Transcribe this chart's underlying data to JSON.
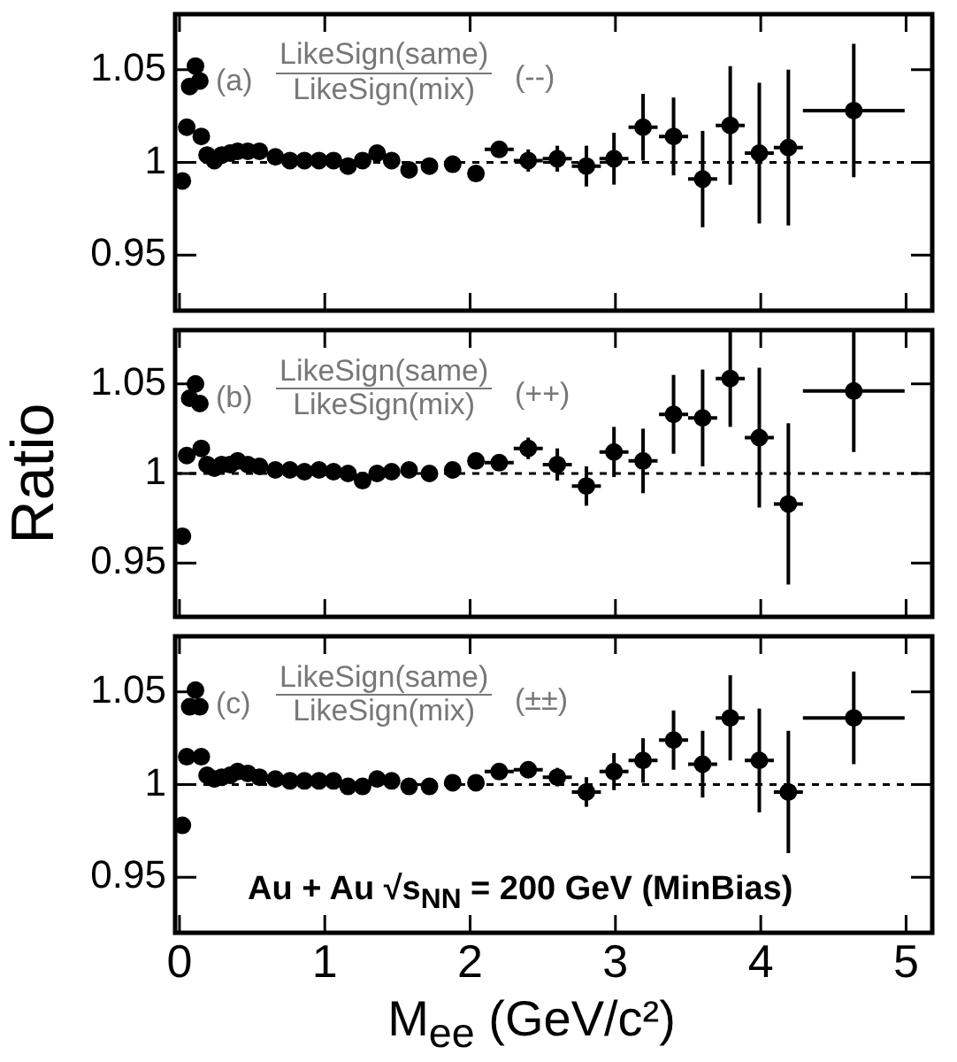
{
  "chart_data": [
    {
      "type": "scatter",
      "annotations": [
        "(a)",
        "LikeSign(same)",
        "LikeSign(mix)",
        "(--)"
      ],
      "xlim": [
        -0.03,
        5.18
      ],
      "xticks": [
        0,
        1,
        2,
        3,
        4,
        5
      ],
      "ylim": [
        0.92,
        1.08
      ],
      "yticks": [
        0.95,
        1,
        1.05
      ],
      "tick_labels": "y",
      "grid": false,
      "legend": false,
      "marker": "circle",
      "ref_lines": [
        {
          "axis": "y",
          "value": 1,
          "line_style": "dashed"
        }
      ],
      "series": [
        {
          "color": "#000000",
          "x": [
            0.02,
            0.05,
            0.07,
            0.11,
            0.14,
            0.15,
            0.19,
            0.24,
            0.29,
            0.35,
            0.4,
            0.47,
            0.55,
            0.66,
            0.76,
            0.86,
            0.96,
            1.06,
            1.16,
            1.26,
            1.36,
            1.46,
            1.58,
            1.72,
            1.88,
            2.04,
            2.2,
            2.4,
            2.6,
            2.8,
            2.99,
            3.19,
            3.4,
            3.6,
            3.79,
            3.99,
            4.19,
            4.64
          ],
          "values": [
            0.99,
            1.019,
            1.041,
            1.052,
            1.044,
            1.014,
            1.004,
            1.001,
            1.004,
            1.005,
            1.006,
            1.006,
            1.006,
            1.003,
            1.001,
            1.001,
            1.001,
            1.001,
            0.998,
            1.001,
            1.005,
            1.001,
            0.996,
            0.998,
            0.999,
            0.994,
            1.007,
            1.001,
            1.002,
            0.998,
            1.002,
            1.019,
            1.014,
            0.991,
            1.02,
            1.005,
            1.008,
            1.028
          ],
          "errors": [
            0.003,
            null,
            null,
            null,
            null,
            null,
            null,
            null,
            null,
            null,
            null,
            null,
            null,
            null,
            null,
            null,
            null,
            null,
            null,
            null,
            null,
            null,
            null,
            null,
            null,
            0.003,
            0.004,
            0.006,
            0.007,
            0.011,
            0.014,
            0.018,
            0.021,
            0.026,
            0.032,
            0.038,
            0.042,
            0.036
          ],
          "xerrors": [
            null,
            null,
            null,
            null,
            null,
            null,
            null,
            null,
            null,
            null,
            null,
            null,
            null,
            null,
            null,
            null,
            null,
            null,
            null,
            null,
            null,
            null,
            0.05,
            0.05,
            0.05,
            0.05,
            0.1,
            0.1,
            0.1,
            0.1,
            0.1,
            0.1,
            0.1,
            0.1,
            0.1,
            0.1,
            0.1,
            0.35
          ]
        }
      ]
    },
    {
      "type": "scatter",
      "ylabel": "Ratio",
      "annotations": [
        "(b)",
        "LikeSign(same)",
        "LikeSign(mix)",
        "(++)"
      ],
      "xlim": [
        -0.03,
        5.18
      ],
      "xticks": [
        0,
        1,
        2,
        3,
        4,
        5
      ],
      "ylim": [
        0.92,
        1.08
      ],
      "yticks": [
        0.95,
        1,
        1.05
      ],
      "tick_labels": "y",
      "grid": false,
      "legend": false,
      "marker": "circle",
      "ref_lines": [
        {
          "axis": "y",
          "value": 1,
          "line_style": "dashed"
        }
      ],
      "series": [
        {
          "color": "#000000",
          "x": [
            0.02,
            0.05,
            0.07,
            0.11,
            0.14,
            0.15,
            0.19,
            0.24,
            0.29,
            0.35,
            0.4,
            0.47,
            0.55,
            0.66,
            0.76,
            0.86,
            0.96,
            1.06,
            1.16,
            1.26,
            1.36,
            1.46,
            1.58,
            1.72,
            1.88,
            2.04,
            2.2,
            2.4,
            2.6,
            2.8,
            2.99,
            3.19,
            3.4,
            3.6,
            3.79,
            3.99,
            4.19,
            4.64
          ],
          "values": [
            0.965,
            1.01,
            1.042,
            1.05,
            1.039,
            1.014,
            1.005,
            1.003,
            1.005,
            1.005,
            1.007,
            1.005,
            1.004,
            1.002,
            1.002,
            1.001,
            1.002,
            1.001,
            1.0,
            0.996,
            1.0,
            1.001,
            1.002,
            1.0,
            1.002,
            1.007,
            1.006,
            1.014,
            1.005,
            0.993,
            1.012,
            1.007,
            1.033,
            1.031,
            1.053,
            1.02,
            0.983,
            1.046
          ],
          "errors": [
            0.004,
            null,
            null,
            null,
            null,
            null,
            null,
            null,
            null,
            null,
            null,
            null,
            null,
            null,
            null,
            null,
            null,
            null,
            null,
            null,
            null,
            null,
            null,
            null,
            null,
            0.003,
            0.004,
            0.006,
            0.009,
            0.011,
            0.014,
            0.018,
            0.022,
            0.027,
            0.027,
            0.039,
            0.045,
            0.034
          ],
          "xerrors": [
            null,
            null,
            null,
            null,
            null,
            null,
            null,
            null,
            null,
            null,
            null,
            null,
            null,
            null,
            null,
            null,
            null,
            null,
            null,
            null,
            null,
            null,
            0.05,
            0.05,
            0.05,
            0.05,
            0.1,
            0.1,
            0.1,
            0.1,
            0.1,
            0.1,
            0.1,
            0.1,
            0.1,
            0.1,
            0.1,
            0.35
          ]
        }
      ]
    },
    {
      "type": "scatter",
      "xlabel": "M$_{ee}$ (GeV/c²)",
      "annotations": [
        "(c)",
        "LikeSign(same)",
        "LikeSign(mix)",
        "(±±)",
        "Au + Au √s$_{NN}$ = 200 GeV (MinBias)"
      ],
      "xlim": [
        -0.03,
        5.18
      ],
      "xticks": [
        0,
        1,
        2,
        3,
        4,
        5
      ],
      "ylim": [
        0.92,
        1.08
      ],
      "yticks": [
        0.95,
        1,
        1.05
      ],
      "grid": false,
      "legend": false,
      "marker": "circle",
      "ref_lines": [
        {
          "axis": "y",
          "value": 1,
          "line_style": "dashed"
        }
      ],
      "series": [
        {
          "color": "#000000",
          "x": [
            0.02,
            0.05,
            0.07,
            0.11,
            0.14,
            0.15,
            0.19,
            0.24,
            0.29,
            0.35,
            0.4,
            0.47,
            0.55,
            0.66,
            0.76,
            0.86,
            0.96,
            1.06,
            1.16,
            1.26,
            1.36,
            1.46,
            1.58,
            1.72,
            1.88,
            2.04,
            2.2,
            2.4,
            2.6,
            2.8,
            2.99,
            3.19,
            3.4,
            3.6,
            3.79,
            3.99,
            4.19,
            4.64
          ],
          "values": [
            0.978,
            1.015,
            1.042,
            1.051,
            1.042,
            1.015,
            1.005,
            1.003,
            1.004,
            1.005,
            1.007,
            1.006,
            1.004,
            1.003,
            1.002,
            1.002,
            1.002,
            1.002,
            0.999,
            0.999,
            1.003,
            1.002,
            0.999,
            0.999,
            1.001,
            1.001,
            1.007,
            1.008,
            1.004,
            0.996,
            1.007,
            1.013,
            1.024,
            1.011,
            1.036,
            1.013,
            0.996,
            1.036
          ],
          "errors": [
            0.003,
            null,
            null,
            null,
            null,
            null,
            null,
            null,
            null,
            null,
            null,
            null,
            null,
            null,
            null,
            null,
            null,
            null,
            null,
            null,
            null,
            null,
            null,
            null,
            null,
            0.003,
            0.003,
            0.004,
            0.005,
            0.008,
            0.01,
            0.012,
            0.016,
            0.018,
            0.023,
            0.028,
            0.033,
            0.025
          ],
          "xerrors": [
            null,
            null,
            null,
            null,
            null,
            null,
            null,
            null,
            null,
            null,
            null,
            null,
            null,
            null,
            null,
            null,
            null,
            null,
            null,
            null,
            null,
            null,
            0.05,
            0.05,
            0.05,
            0.05,
            0.1,
            0.1,
            0.1,
            0.1,
            0.1,
            0.1,
            0.1,
            0.1,
            0.1,
            0.1,
            0.1,
            0.35
          ]
        }
      ]
    }
  ]
}
